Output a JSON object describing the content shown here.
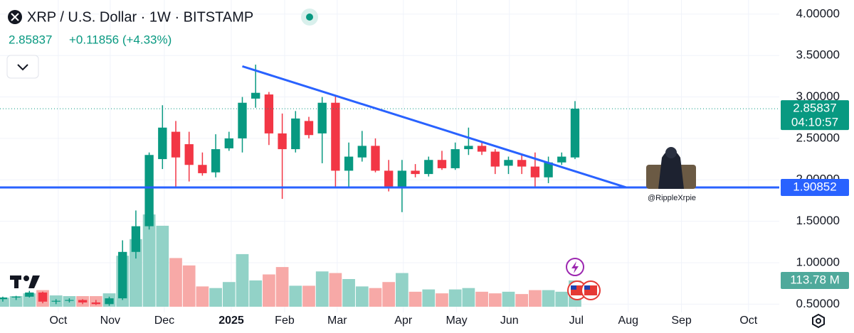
{
  "chart_data": {
    "type": "candlestick",
    "title": "XRP / U.S. Dollar · 1W · BITSTAMP",
    "last_price": 2.85837,
    "change": "+0.11856 (+4.33%)",
    "countdown": "04:10:57",
    "support_level": 1.90852,
    "trendline": [
      [
        18,
        3.37
      ],
      [
        46.84,
        1.90852
      ]
    ],
    "watermark": "@RippleXrpie",
    "up_color": "#089981",
    "down_color": "#f23645",
    "volume_up_color": "#92d2c7",
    "volume_down_color": "#f7a9a7",
    "line_color": "#2962ff",
    "grid": true,
    "xlim": [
      -0.21,
      58.35
    ],
    "ylim": [
      0.4,
      4.17
    ],
    "volume_ylim": [
      0,
      440
    ],
    "xticks": [
      {
        "value": 4.17,
        "label": "Oct"
      },
      {
        "value": 8.07,
        "label": "Nov"
      },
      {
        "value": 12.14,
        "label": "Dec"
      },
      {
        "value": 17.17,
        "label": "2025"
      },
      {
        "value": 21.18,
        "label": "Feb"
      },
      {
        "value": 25.13,
        "label": "Mar"
      },
      {
        "value": 30.1,
        "label": "Apr"
      },
      {
        "value": 34.1,
        "label": "May"
      },
      {
        "value": 38.07,
        "label": "Jun"
      },
      {
        "value": 43.1,
        "label": "Jul"
      },
      {
        "value": 47.0,
        "label": "Aug"
      },
      {
        "value": 51.0,
        "label": "Sep"
      },
      {
        "value": 56.04,
        "label": "Oct"
      }
    ],
    "yticks": [
      {
        "value": 4,
        "label": "4.00000"
      },
      {
        "value": 3.5,
        "label": "3.50000"
      },
      {
        "value": 3,
        "label": "3.00000"
      },
      {
        "value": 2.5,
        "label": "2.50000"
      },
      {
        "value": 2,
        "label": "2.00000"
      },
      {
        "value": 1.5,
        "label": "1.50000"
      },
      {
        "value": 1,
        "label": "1.00000"
      },
      {
        "value": 0.5,
        "label": "0.50000"
      }
    ],
    "open": [
      0.56,
      0.58,
      0.59,
      0.64,
      0.53,
      0.54,
      0.55,
      0.52,
      0.5,
      0.57,
      1.13,
      1.44,
      2.25,
      2.58,
      2.43,
      2.18,
      2.09,
      2.38,
      2.5,
      2.98,
      3.03,
      2.56,
      2.37,
      2.71,
      2.56,
      2.93,
      2.11,
      2.27,
      2.41,
      2.11,
      1.9,
      2.11,
      2.07,
      2.24,
      2.14,
      2.37,
      2.41,
      2.34,
      2.17,
      2.24,
      2.16,
      2.03,
      2.21,
      2.27
    ],
    "high": [
      0.59,
      0.6,
      0.66,
      0.65,
      0.56,
      0.57,
      0.56,
      0.55,
      0.59,
      1.27,
      1.63,
      2.33,
      2.9,
      2.71,
      2.58,
      2.33,
      2.55,
      2.58,
      3.0,
      3.39,
      3.06,
      2.8,
      2.83,
      2.76,
      3.0,
      3.02,
      2.45,
      2.59,
      2.5,
      2.24,
      2.24,
      2.19,
      2.28,
      2.35,
      2.45,
      2.63,
      2.46,
      2.37,
      2.28,
      2.3,
      2.33,
      2.28,
      2.33,
      2.95
    ],
    "low": [
      0.53,
      0.55,
      0.58,
      0.51,
      0.5,
      0.52,
      0.5,
      0.49,
      0.48,
      0.55,
      1.05,
      1.4,
      2.13,
      1.9,
      1.98,
      2.05,
      2.03,
      2.35,
      2.33,
      2.87,
      2.42,
      1.77,
      2.33,
      2.5,
      2.2,
      1.9,
      1.9,
      2.22,
      2.09,
      1.86,
      1.61,
      2.03,
      2.04,
      2.12,
      2.12,
      2.3,
      2.3,
      2.07,
      2.07,
      2.07,
      1.9,
      1.96,
      2.18,
      2.25
    ],
    "close": [
      0.58,
      0.59,
      0.64,
      0.53,
      0.54,
      0.55,
      0.52,
      0.5,
      0.57,
      1.13,
      1.44,
      2.3,
      2.63,
      2.27,
      2.18,
      2.08,
      2.37,
      2.5,
      2.93,
      3.05,
      2.56,
      2.37,
      2.74,
      2.54,
      2.93,
      2.11,
      2.28,
      2.41,
      2.11,
      1.9,
      2.11,
      2.07,
      2.24,
      2.14,
      2.37,
      2.41,
      2.34,
      2.16,
      2.24,
      2.16,
      2.03,
      2.21,
      2.28,
      2.85837
    ],
    "volume": [
      39,
      46,
      58,
      72,
      49,
      46,
      46,
      46,
      58,
      221,
      293,
      400,
      351,
      211,
      179,
      88,
      81,
      107,
      228,
      114,
      140,
      172,
      91,
      91,
      153,
      146,
      120,
      88,
      81,
      107,
      146,
      65,
      75,
      58,
      75,
      81,
      65,
      58,
      65,
      55,
      72,
      72,
      65,
      113.78
    ],
    "volume_last_label": "113.78 M"
  }
}
